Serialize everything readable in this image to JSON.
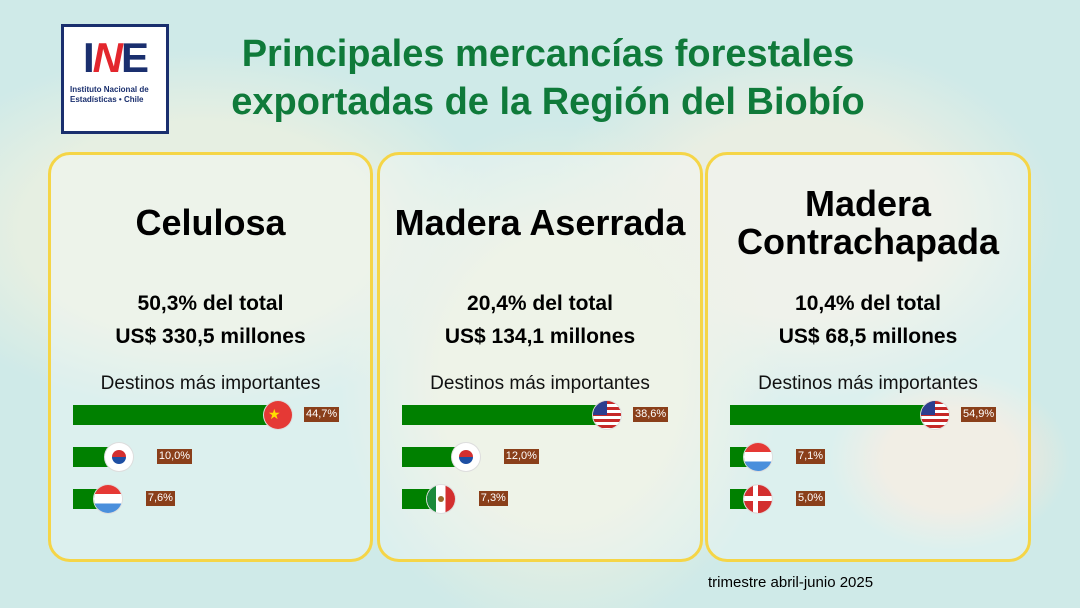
{
  "logo": {
    "mark_left": "I",
    "mark_mid": "N",
    "mark_right": "E",
    "subtitle_line1": "Instituto Nacional de",
    "subtitle_line2": "Estadísticas • Chile"
  },
  "title": "Principales mercancías forestales exportadas de la Región del Biobío",
  "cards": [
    {
      "name": "Celulosa",
      "share": "50,3% del total",
      "value": "US$ 330,5 millones",
      "dest_label": "Destinos más importantes",
      "destinations": [
        {
          "flag": "china-flag",
          "pct": 44.7,
          "label": "44,7%"
        },
        {
          "flag": "south-korea-flag",
          "pct": 10.0,
          "label": "10,0%"
        },
        {
          "flag": "netherlands-flag",
          "pct": 7.6,
          "label": "7,6%"
        }
      ]
    },
    {
      "name": "Madera Aserrada",
      "share": "20,4% del total",
      "value": "US$ 134,1 millones",
      "dest_label": "Destinos más importantes",
      "destinations": [
        {
          "flag": "usa-flag",
          "pct": 38.6,
          "label": "38,6%"
        },
        {
          "flag": "south-korea-flag",
          "pct": 12.0,
          "label": "12,0%"
        },
        {
          "flag": "mexico-flag",
          "pct": 7.3,
          "label": "7,3%"
        }
      ]
    },
    {
      "name": "Madera Contrachapada",
      "share": "10,4% del total",
      "value": "US$ 68,5 millones",
      "dest_label": "Destinos más importantes",
      "destinations": [
        {
          "flag": "usa-flag",
          "pct": 54.9,
          "label": "54,9%"
        },
        {
          "flag": "netherlands-flag",
          "pct": 7.1,
          "label": "7,1%"
        },
        {
          "flag": "denmark-flag",
          "pct": 5.0,
          "label": "5,0%"
        }
      ]
    }
  ],
  "footer": "trimestre abril-junio 2025",
  "colors": {
    "bar": "#008000",
    "title": "#0f7a3a",
    "border": "#f5d547",
    "label_bg": "#8a3f1a"
  }
}
